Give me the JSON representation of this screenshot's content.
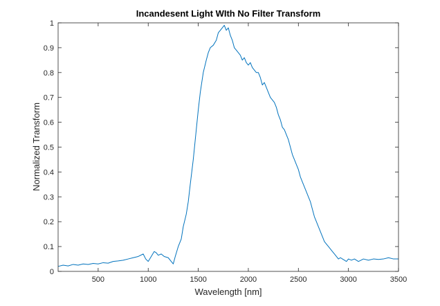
{
  "chart_data": {
    "type": "line",
    "title": "Incandesent Light WIth No Filter Transform",
    "xlabel": "Wavelength [nm]",
    "ylabel": "Normalized Transform",
    "xlim": [
      100,
      3500
    ],
    "ylim": [
      0,
      1
    ],
    "xticks": [
      500,
      1000,
      1500,
      2000,
      2500,
      3000,
      3500
    ],
    "yticks": [
      0,
      0.1,
      0.2,
      0.3,
      0.4,
      0.5,
      0.6,
      0.7,
      0.8,
      0.9,
      1
    ],
    "xtick_labels": [
      "500",
      "1000",
      "1500",
      "2000",
      "2500",
      "3000",
      "3500"
    ],
    "ytick_labels": [
      "0",
      "0.1",
      "0.2",
      "0.3",
      "0.4",
      "0.5",
      "0.6",
      "0.7",
      "0.8",
      "0.9",
      "1"
    ],
    "grid": false,
    "line_color": "#0072BD",
    "series": [
      {
        "x": [
          100,
          150,
          200,
          250,
          300,
          350,
          400,
          450,
          500,
          550,
          600,
          650,
          700,
          750,
          800,
          850,
          900,
          950,
          975,
          1000,
          1030,
          1060,
          1080,
          1100,
          1130,
          1160,
          1200,
          1230,
          1250,
          1270,
          1300,
          1330,
          1350,
          1380,
          1400,
          1420,
          1450,
          1480,
          1500,
          1520,
          1550,
          1580,
          1600,
          1620,
          1650,
          1680,
          1700,
          1720,
          1740,
          1760,
          1780,
          1800,
          1820,
          1840,
          1860,
          1880,
          1900,
          1920,
          1940,
          1960,
          1980,
          2000,
          2020,
          2040,
          2060,
          2080,
          2100,
          2120,
          2140,
          2160,
          2180,
          2200,
          2220,
          2240,
          2260,
          2280,
          2300,
          2320,
          2340,
          2360,
          2380,
          2400,
          2420,
          2440,
          2460,
          2480,
          2500,
          2520,
          2540,
          2560,
          2580,
          2600,
          2620,
          2640,
          2660,
          2680,
          2700,
          2720,
          2740,
          2760,
          2780,
          2800,
          2820,
          2840,
          2860,
          2880,
          2900,
          2920,
          2940,
          2960,
          2980,
          3000,
          3030,
          3060,
          3100,
          3150,
          3200,
          3250,
          3300,
          3350,
          3400,
          3450,
          3500
        ],
        "y": [
          0.02,
          0.025,
          0.022,
          0.028,
          0.025,
          0.03,
          0.028,
          0.032,
          0.03,
          0.035,
          0.033,
          0.04,
          0.042,
          0.045,
          0.05,
          0.055,
          0.06,
          0.07,
          0.05,
          0.04,
          0.06,
          0.08,
          0.075,
          0.065,
          0.07,
          0.06,
          0.055,
          0.04,
          0.03,
          0.06,
          0.1,
          0.13,
          0.18,
          0.23,
          0.28,
          0.35,
          0.45,
          0.57,
          0.65,
          0.72,
          0.8,
          0.85,
          0.88,
          0.9,
          0.91,
          0.93,
          0.96,
          0.97,
          0.98,
          0.99,
          0.97,
          0.98,
          0.95,
          0.93,
          0.9,
          0.89,
          0.88,
          0.87,
          0.85,
          0.86,
          0.84,
          0.83,
          0.84,
          0.82,
          0.81,
          0.8,
          0.8,
          0.78,
          0.75,
          0.76,
          0.74,
          0.72,
          0.7,
          0.69,
          0.68,
          0.66,
          0.63,
          0.61,
          0.58,
          0.57,
          0.55,
          0.53,
          0.5,
          0.47,
          0.45,
          0.43,
          0.41,
          0.38,
          0.36,
          0.34,
          0.32,
          0.3,
          0.28,
          0.25,
          0.22,
          0.2,
          0.18,
          0.16,
          0.14,
          0.12,
          0.11,
          0.1,
          0.09,
          0.08,
          0.07,
          0.06,
          0.05,
          0.055,
          0.05,
          0.045,
          0.04,
          0.05,
          0.045,
          0.05,
          0.04,
          0.05,
          0.045,
          0.05,
          0.048,
          0.05,
          0.055,
          0.05,
          0.05
        ]
      }
    ]
  }
}
